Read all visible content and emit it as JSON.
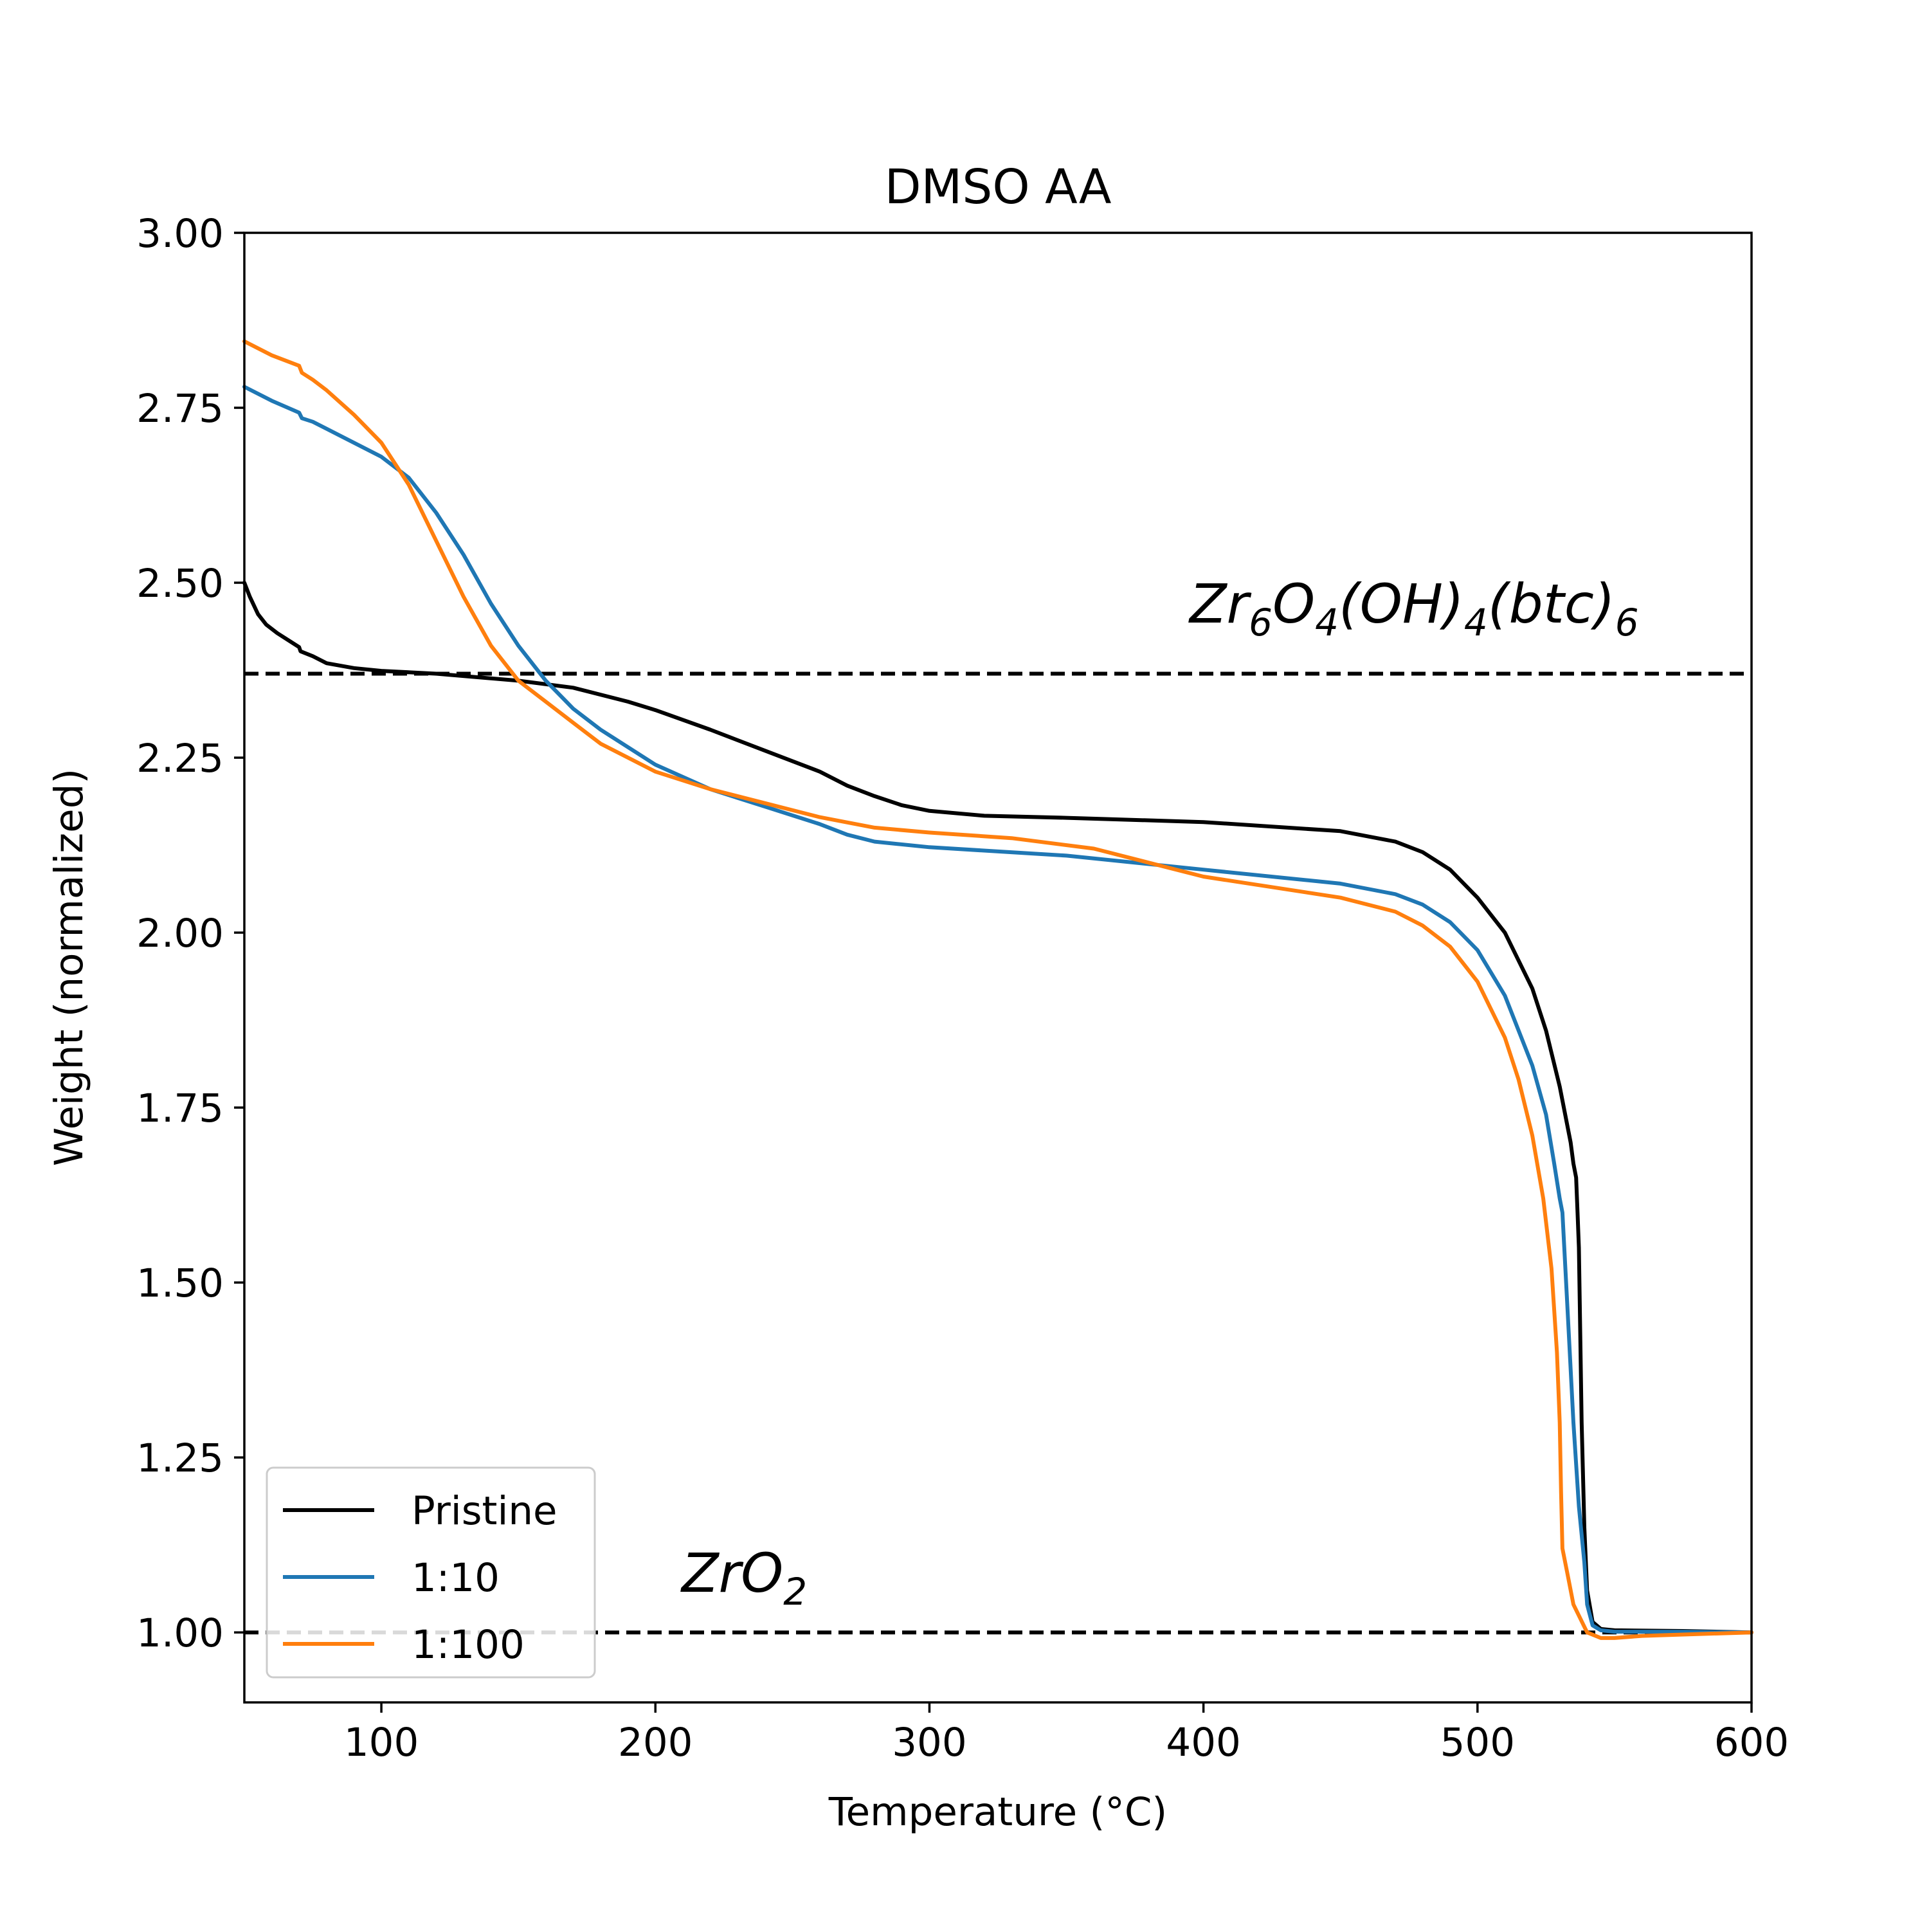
{
  "chart_data": {
    "type": "line",
    "title": "DMSO AA",
    "xlabel": "Temperature (°C)",
    "ylabel": "Weight (normalized)",
    "xlim": [
      50,
      600
    ],
    "ylim": [
      0.9,
      3.0
    ],
    "xticks": [
      100,
      200,
      300,
      400,
      500,
      600
    ],
    "xtick_labels": [
      "100",
      "200",
      "300",
      "400",
      "500",
      "600"
    ],
    "yticks": [
      1.0,
      1.25,
      1.5,
      1.75,
      2.0,
      2.25,
      2.5,
      2.75,
      3.0
    ],
    "ytick_labels": [
      "1.00",
      "1.25",
      "1.50",
      "1.75",
      "2.00",
      "2.25",
      "2.50",
      "2.75",
      "3.00"
    ],
    "grid": false,
    "legend_position": "lower-left",
    "reference_lines": [
      {
        "y": 2.37,
        "style": "dashed",
        "color": "#000000",
        "label_parts": [
          "Zr",
          "6",
          "O",
          "4",
          "(OH)",
          "4",
          "(btc)",
          "6"
        ]
      },
      {
        "y": 1.0,
        "style": "dashed",
        "color": "#000000",
        "label_parts": [
          "ZrO",
          "2"
        ]
      }
    ],
    "series": [
      {
        "name": "Pristine",
        "color": "#000000",
        "x": [
          50,
          52,
          55,
          58,
          62,
          66,
          70,
          70.5,
          75,
          80,
          90,
          100,
          120,
          150,
          170,
          190,
          200,
          220,
          240,
          260,
          270,
          280,
          290,
          300,
          320,
          350,
          400,
          450,
          470,
          480,
          490,
          500,
          510,
          520,
          525,
          530,
          532,
          534,
          535,
          536,
          536.5,
          537,
          538,
          539,
          540,
          542,
          545,
          550,
          575,
          600
        ],
        "y": [
          2.5,
          2.48,
          2.455,
          2.44,
          2.428,
          2.418,
          2.408,
          2.402,
          2.395,
          2.385,
          2.378,
          2.374,
          2.37,
          2.36,
          2.35,
          2.33,
          2.318,
          2.29,
          2.26,
          2.23,
          2.21,
          2.195,
          2.182,
          2.174,
          2.167,
          2.164,
          2.158,
          2.145,
          2.13,
          2.115,
          2.09,
          2.05,
          2.0,
          1.92,
          1.86,
          1.78,
          1.74,
          1.7,
          1.67,
          1.65,
          1.6,
          1.55,
          1.3,
          1.15,
          1.06,
          1.015,
          1.005,
          1.003,
          1.002,
          1.0
        ]
      },
      {
        "name": "1:10",
        "color": "#1f77b4",
        "x": [
          50,
          60,
          70,
          71,
          75,
          80,
          90,
          100,
          110,
          120,
          130,
          140,
          150,
          160,
          170,
          180,
          200,
          220,
          240,
          260,
          270,
          280,
          300,
          350,
          400,
          450,
          470,
          480,
          490,
          500,
          510,
          520,
          525,
          528,
          530,
          531,
          533,
          535,
          537,
          539,
          540,
          542,
          545,
          550,
          575,
          600
        ],
        "y": [
          2.78,
          2.76,
          2.743,
          2.735,
          2.73,
          2.72,
          2.7,
          2.68,
          2.65,
          2.6,
          2.54,
          2.47,
          2.41,
          2.36,
          2.32,
          2.29,
          2.24,
          2.205,
          2.18,
          2.155,
          2.14,
          2.13,
          2.122,
          2.11,
          2.09,
          2.07,
          2.055,
          2.04,
          2.015,
          1.975,
          1.91,
          1.81,
          1.74,
          1.67,
          1.62,
          1.6,
          1.45,
          1.3,
          1.18,
          1.1,
          1.04,
          1.01,
          1.003,
          1.001,
          1.001,
          1.0
        ]
      },
      {
        "name": "1:100",
        "color": "#ff7f0e",
        "x": [
          50,
          60,
          70,
          71,
          75,
          80,
          90,
          100,
          110,
          120,
          130,
          140,
          150,
          160,
          170,
          180,
          200,
          220,
          240,
          260,
          280,
          300,
          330,
          360,
          380,
          400,
          450,
          470,
          480,
          490,
          500,
          510,
          515,
          520,
          524,
          527,
          529,
          530,
          530.5,
          531,
          533,
          535,
          540,
          545,
          550,
          560,
          575,
          600
        ],
        "y": [
          2.845,
          2.825,
          2.81,
          2.8,
          2.79,
          2.775,
          2.74,
          2.7,
          2.64,
          2.56,
          2.48,
          2.41,
          2.36,
          2.33,
          2.3,
          2.27,
          2.23,
          2.205,
          2.185,
          2.165,
          2.15,
          2.143,
          2.135,
          2.12,
          2.1,
          2.08,
          2.05,
          2.03,
          2.01,
          1.98,
          1.93,
          1.85,
          1.79,
          1.71,
          1.62,
          1.52,
          1.4,
          1.3,
          1.2,
          1.12,
          1.08,
          1.04,
          1.0,
          0.992,
          0.992,
          0.995,
          0.997,
          1.0
        ]
      }
    ]
  }
}
